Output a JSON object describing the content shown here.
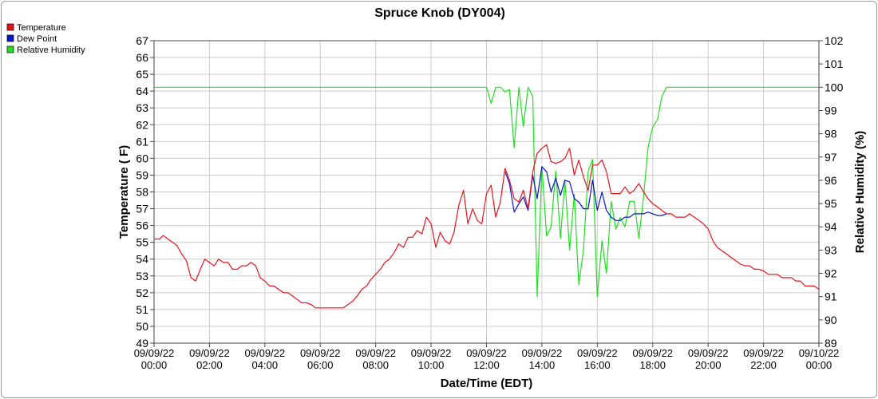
{
  "chart_data": {
    "type": "line",
    "title": "Spruce Knob (DY004)",
    "xlabel": "Date/Time (EDT)",
    "ylabel_left": "Temperature ( F)",
    "ylabel_right": "Relative Humidity (%)",
    "ylim_left": [
      49,
      67
    ],
    "ylim_right": [
      89,
      102
    ],
    "xlim_hours": [
      0,
      24
    ],
    "grid": true,
    "legend_position": "top-left",
    "x_ticks": [
      {
        "hour": 0,
        "date": "09/09/22",
        "time": "00:00"
      },
      {
        "hour": 2,
        "date": "09/09/22",
        "time": "02:00"
      },
      {
        "hour": 4,
        "date": "09/09/22",
        "time": "04:00"
      },
      {
        "hour": 6,
        "date": "09/09/22",
        "time": "06:00"
      },
      {
        "hour": 8,
        "date": "09/09/22",
        "time": "08:00"
      },
      {
        "hour": 10,
        "date": "09/09/22",
        "time": "10:00"
      },
      {
        "hour": 12,
        "date": "09/09/22",
        "time": "12:00"
      },
      {
        "hour": 14,
        "date": "09/09/22",
        "time": "14:00"
      },
      {
        "hour": 16,
        "date": "09/09/22",
        "time": "16:00"
      },
      {
        "hour": 18,
        "date": "09/09/22",
        "time": "18:00"
      },
      {
        "hour": 20,
        "date": "09/09/22",
        "time": "20:00"
      },
      {
        "hour": 22,
        "date": "09/09/22",
        "time": "22:00"
      },
      {
        "hour": 24,
        "date": "09/10/22",
        "time": "00:00"
      }
    ],
    "y_ticks_left": [
      49,
      50,
      51,
      52,
      53,
      54,
      55,
      56,
      57,
      58,
      59,
      60,
      61,
      62,
      63,
      64,
      65,
      66,
      67
    ],
    "y_ticks_right": [
      89,
      90,
      91,
      92,
      93,
      94,
      95,
      96,
      97,
      98,
      99,
      100,
      101,
      102
    ],
    "series": [
      {
        "name": "Temperature",
        "color": "#e8141c",
        "axis": "left",
        "points": [
          [
            0,
            55.2
          ],
          [
            0.2,
            55.2
          ],
          [
            0.33,
            55.4
          ],
          [
            0.5,
            55.2
          ],
          [
            0.67,
            55.0
          ],
          [
            0.83,
            54.8
          ],
          [
            1.0,
            54.3
          ],
          [
            1.17,
            53.9
          ],
          [
            1.33,
            52.9
          ],
          [
            1.5,
            52.7
          ],
          [
            1.67,
            53.4
          ],
          [
            1.83,
            54.0
          ],
          [
            2.0,
            53.8
          ],
          [
            2.17,
            53.6
          ],
          [
            2.33,
            54.0
          ],
          [
            2.5,
            53.8
          ],
          [
            2.67,
            53.8
          ],
          [
            2.83,
            53.4
          ],
          [
            3.0,
            53.4
          ],
          [
            3.17,
            53.6
          ],
          [
            3.33,
            53.6
          ],
          [
            3.5,
            53.8
          ],
          [
            3.67,
            53.6
          ],
          [
            3.83,
            52.9
          ],
          [
            4.0,
            52.7
          ],
          [
            4.17,
            52.4
          ],
          [
            4.33,
            52.4
          ],
          [
            4.5,
            52.2
          ],
          [
            4.67,
            52.0
          ],
          [
            4.83,
            52.0
          ],
          [
            5.0,
            51.8
          ],
          [
            5.17,
            51.6
          ],
          [
            5.33,
            51.4
          ],
          [
            5.5,
            51.4
          ],
          [
            5.67,
            51.3
          ],
          [
            5.83,
            51.1
          ],
          [
            6.0,
            51.1
          ],
          [
            6.5,
            51.1
          ],
          [
            6.83,
            51.1
          ],
          [
            7.0,
            51.3
          ],
          [
            7.17,
            51.5
          ],
          [
            7.33,
            51.8
          ],
          [
            7.5,
            52.2
          ],
          [
            7.67,
            52.4
          ],
          [
            7.83,
            52.8
          ],
          [
            8.0,
            53.1
          ],
          [
            8.17,
            53.4
          ],
          [
            8.33,
            53.8
          ],
          [
            8.5,
            54.0
          ],
          [
            8.67,
            54.4
          ],
          [
            8.83,
            54.9
          ],
          [
            9.0,
            54.7
          ],
          [
            9.17,
            55.3
          ],
          [
            9.33,
            55.3
          ],
          [
            9.5,
            55.7
          ],
          [
            9.67,
            55.5
          ],
          [
            9.83,
            56.5
          ],
          [
            10.0,
            56.1
          ],
          [
            10.17,
            54.7
          ],
          [
            10.33,
            55.6
          ],
          [
            10.5,
            55.1
          ],
          [
            10.67,
            54.9
          ],
          [
            10.83,
            55.6
          ],
          [
            11.0,
            57.2
          ],
          [
            11.17,
            58.1
          ],
          [
            11.33,
            56.1
          ],
          [
            11.5,
            57.0
          ],
          [
            11.67,
            56.3
          ],
          [
            11.83,
            56.1
          ],
          [
            12.0,
            57.9
          ],
          [
            12.17,
            58.4
          ],
          [
            12.33,
            56.5
          ],
          [
            12.5,
            57.4
          ],
          [
            12.67,
            59.4
          ],
          [
            12.83,
            58.7
          ],
          [
            13.0,
            57.6
          ],
          [
            13.17,
            57.4
          ],
          [
            13.33,
            58.1
          ],
          [
            13.5,
            57.0
          ],
          [
            13.67,
            59.2
          ],
          [
            13.83,
            60.3
          ],
          [
            14.0,
            60.6
          ],
          [
            14.17,
            60.8
          ],
          [
            14.33,
            59.8
          ],
          [
            14.5,
            59.7
          ],
          [
            14.67,
            59.8
          ],
          [
            14.83,
            60.0
          ],
          [
            15.0,
            60.6
          ],
          [
            15.17,
            59.0
          ],
          [
            15.33,
            59.9
          ],
          [
            15.5,
            58.9
          ],
          [
            15.67,
            58.1
          ],
          [
            15.83,
            59.6
          ],
          [
            16.0,
            59.6
          ],
          [
            16.17,
            59.9
          ],
          [
            16.33,
            59.2
          ],
          [
            16.5,
            57.9
          ],
          [
            16.67,
            57.9
          ],
          [
            16.83,
            57.9
          ],
          [
            17.0,
            58.3
          ],
          [
            17.17,
            57.9
          ],
          [
            17.33,
            58.1
          ],
          [
            17.5,
            58.5
          ],
          [
            17.67,
            58.0
          ],
          [
            17.83,
            57.6
          ],
          [
            18.0,
            57.3
          ],
          [
            18.17,
            57.1
          ],
          [
            18.33,
            56.9
          ],
          [
            18.5,
            56.7
          ],
          [
            18.67,
            56.7
          ],
          [
            18.83,
            56.5
          ],
          [
            19.0,
            56.5
          ],
          [
            19.17,
            56.5
          ],
          [
            19.33,
            56.7
          ],
          [
            19.5,
            56.5
          ],
          [
            19.67,
            56.3
          ],
          [
            19.83,
            56.1
          ],
          [
            20.0,
            55.8
          ],
          [
            20.17,
            55.1
          ],
          [
            20.33,
            54.7
          ],
          [
            20.5,
            54.5
          ],
          [
            20.67,
            54.3
          ],
          [
            20.83,
            54.1
          ],
          [
            21.0,
            53.9
          ],
          [
            21.17,
            53.7
          ],
          [
            21.33,
            53.6
          ],
          [
            21.5,
            53.6
          ],
          [
            21.67,
            53.4
          ],
          [
            21.83,
            53.4
          ],
          [
            22.0,
            53.3
          ],
          [
            22.17,
            53.1
          ],
          [
            22.33,
            53.1
          ],
          [
            22.5,
            53.1
          ],
          [
            22.67,
            52.9
          ],
          [
            22.83,
            52.9
          ],
          [
            23.0,
            52.9
          ],
          [
            23.17,
            52.7
          ],
          [
            23.33,
            52.7
          ],
          [
            23.5,
            52.4
          ],
          [
            23.67,
            52.4
          ],
          [
            23.83,
            52.4
          ],
          [
            24.0,
            52.2
          ]
        ]
      },
      {
        "name": "Dew Point",
        "color": "#0a14d6",
        "axis": "left",
        "points": [
          [
            12.67,
            59.2
          ],
          [
            12.83,
            58.5
          ],
          [
            13.0,
            56.8
          ],
          [
            13.17,
            57.3
          ],
          [
            13.33,
            57.7
          ],
          [
            13.5,
            56.9
          ],
          [
            13.67,
            59.0
          ],
          [
            13.83,
            57.6
          ],
          [
            14.0,
            59.5
          ],
          [
            14.17,
            59.2
          ],
          [
            14.33,
            58.0
          ],
          [
            14.5,
            58.8
          ],
          [
            14.67,
            57.8
          ],
          [
            14.83,
            58.7
          ],
          [
            15.0,
            58.6
          ],
          [
            15.17,
            57.6
          ],
          [
            15.33,
            57.4
          ],
          [
            15.5,
            57.0
          ],
          [
            15.67,
            57.0
          ],
          [
            15.83,
            58.7
          ],
          [
            16.0,
            56.9
          ],
          [
            16.17,
            58.0
          ],
          [
            16.33,
            56.9
          ],
          [
            16.5,
            56.5
          ],
          [
            16.67,
            56.3
          ],
          [
            16.83,
            56.3
          ],
          [
            17.0,
            56.5
          ],
          [
            17.17,
            56.5
          ],
          [
            17.33,
            56.7
          ],
          [
            17.5,
            56.7
          ],
          [
            17.67,
            56.7
          ],
          [
            17.83,
            56.8
          ],
          [
            18.0,
            56.7
          ],
          [
            18.17,
            56.6
          ],
          [
            18.33,
            56.6
          ],
          [
            18.5,
            56.7
          ]
        ]
      },
      {
        "name": "Relative Humidity",
        "color": "#1fe01f",
        "axis": "right",
        "points": [
          [
            0,
            100
          ],
          [
            12.0,
            100
          ],
          [
            12.17,
            99.3
          ],
          [
            12.33,
            100
          ],
          [
            12.5,
            100
          ],
          [
            12.67,
            99.8
          ],
          [
            12.83,
            99.9
          ],
          [
            13.0,
            97.4
          ],
          [
            13.17,
            100
          ],
          [
            13.33,
            98.3
          ],
          [
            13.5,
            100
          ],
          [
            13.67,
            99.6
          ],
          [
            13.83,
            91.0
          ],
          [
            14.0,
            96.6
          ],
          [
            14.17,
            93.6
          ],
          [
            14.33,
            94.0
          ],
          [
            14.5,
            96.4
          ],
          [
            14.67,
            93.5
          ],
          [
            14.83,
            96.0
          ],
          [
            15.0,
            93.0
          ],
          [
            15.17,
            95.4
          ],
          [
            15.33,
            91.5
          ],
          [
            15.5,
            93.0
          ],
          [
            15.67,
            96.4
          ],
          [
            15.83,
            96.9
          ],
          [
            16.0,
            91.0
          ],
          [
            16.17,
            93.4
          ],
          [
            16.33,
            92.0
          ],
          [
            16.5,
            95.1
          ],
          [
            16.67,
            93.9
          ],
          [
            16.83,
            94.4
          ],
          [
            17.0,
            94.0
          ],
          [
            17.17,
            95.1
          ],
          [
            17.33,
            95.1
          ],
          [
            17.5,
            93.5
          ],
          [
            17.67,
            95.3
          ],
          [
            17.83,
            97.4
          ],
          [
            18.0,
            98.3
          ],
          [
            18.17,
            98.6
          ],
          [
            18.33,
            99.6
          ],
          [
            18.5,
            100
          ],
          [
            24.0,
            100
          ]
        ]
      }
    ]
  }
}
